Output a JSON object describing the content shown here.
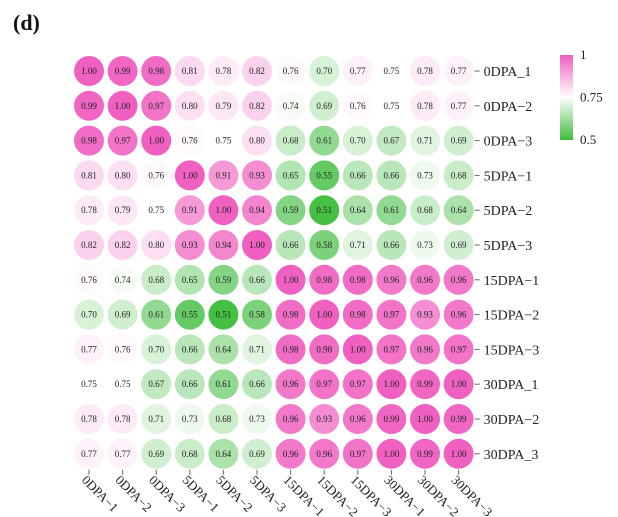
{
  "panel_label": "(d)",
  "chart_data": {
    "type": "heatmap",
    "rows": [
      "0DPA_1",
      "0DPA−2",
      "0DPA−3",
      "5DPA−1",
      "5DPA−2",
      "5DPA−3",
      "15DPA−1",
      "15DPA−2",
      "15DPA−3",
      "30DPA_1",
      "30DPA−2",
      "30DPA_3"
    ],
    "columns": [
      "0DPA−1",
      "0DPA−2",
      "0DPA−3",
      "5DPA−1",
      "5DPA−2",
      "5DPA−3",
      "15DPA−1",
      "15DPA−2",
      "15DPA−3",
      "30DPA−1",
      "30DPA−2",
      "30DPA−3"
    ],
    "values": [
      [
        "1.00",
        "0.99",
        "0.98",
        "0.81",
        "0.78",
        "0.82",
        "0.76",
        "0.70",
        "0.77",
        "0.75",
        "0.78",
        "0.77"
      ],
      [
        "0.99",
        "1.00",
        "0.97",
        "0.80",
        "0.79",
        "0.82",
        "0.74",
        "0.69",
        "0.76",
        "0.75",
        "0.78",
        "0.77"
      ],
      [
        "0.98",
        "0.97",
        "1.00",
        "0.76",
        "0.75",
        "0.80",
        "0.68",
        "0.61",
        "0.70",
        "0.67",
        "0.71",
        "0.69"
      ],
      [
        "0.81",
        "0.80",
        "0.76",
        "1.00",
        "0.91",
        "0.93",
        "0.65",
        "0.55",
        "0.66",
        "0.66",
        "0.73",
        "0.68"
      ],
      [
        "0.78",
        "0.79",
        "0.75",
        "0.91",
        "1.00",
        "0.94",
        "0.59",
        "0.51",
        "0.64",
        "0.61",
        "0.68",
        "0.64"
      ],
      [
        "0.82",
        "0.82",
        "0.80",
        "0.93",
        "0.94",
        "1.00",
        "0.66",
        "0.58",
        "0.71",
        "0.66",
        "0.73",
        "0.69"
      ],
      [
        "0.76",
        "0.74",
        "0.68",
        "0.65",
        "0.59",
        "0.66",
        "1.00",
        "0.98",
        "0.98",
        "0.96",
        "0.96",
        "0.96"
      ],
      [
        "0.70",
        "0.69",
        "0.61",
        "0.55",
        "0.51",
        "0.58",
        "0.98",
        "1.00",
        "0.98",
        "0.97",
        "0.93",
        "0.96"
      ],
      [
        "0.77",
        "0.76",
        "0.70",
        "0.66",
        "0.64",
        "0.71",
        "0.98",
        "0.98",
        "1.00",
        "0.97",
        "0.96",
        "0.97"
      ],
      [
        "0.75",
        "0.75",
        "0.67",
        "0.66",
        "0.61",
        "0.66",
        "0.96",
        "0.97",
        "0.97",
        "1.00",
        "0.99",
        "1.00"
      ],
      [
        "0.78",
        "0.78",
        "0.71",
        "0.73",
        "0.68",
        "0.73",
        "0.96",
        "0.93",
        "0.96",
        "0.99",
        "1.00",
        "0.99"
      ],
      [
        "0.77",
        "0.77",
        "0.69",
        "0.68",
        "0.64",
        "0.69",
        "0.96",
        "0.96",
        "0.97",
        "1.00",
        "0.99",
        "1.00"
      ]
    ],
    "color_scale": {
      "min": 0.5,
      "mid": 0.75,
      "max": 1.0,
      "min_color": "#3dbd3d",
      "mid_color": "#ffffff",
      "max_color": "#f060c0"
    },
    "legend": {
      "ticks": [
        {
          "value": 1.0,
          "label": "1"
        },
        {
          "value": 0.75,
          "label": "0.75"
        },
        {
          "value": 0.5,
          "label": "0.5"
        }
      ],
      "placement": "top-right"
    },
    "marker": "circle",
    "grid": false
  }
}
